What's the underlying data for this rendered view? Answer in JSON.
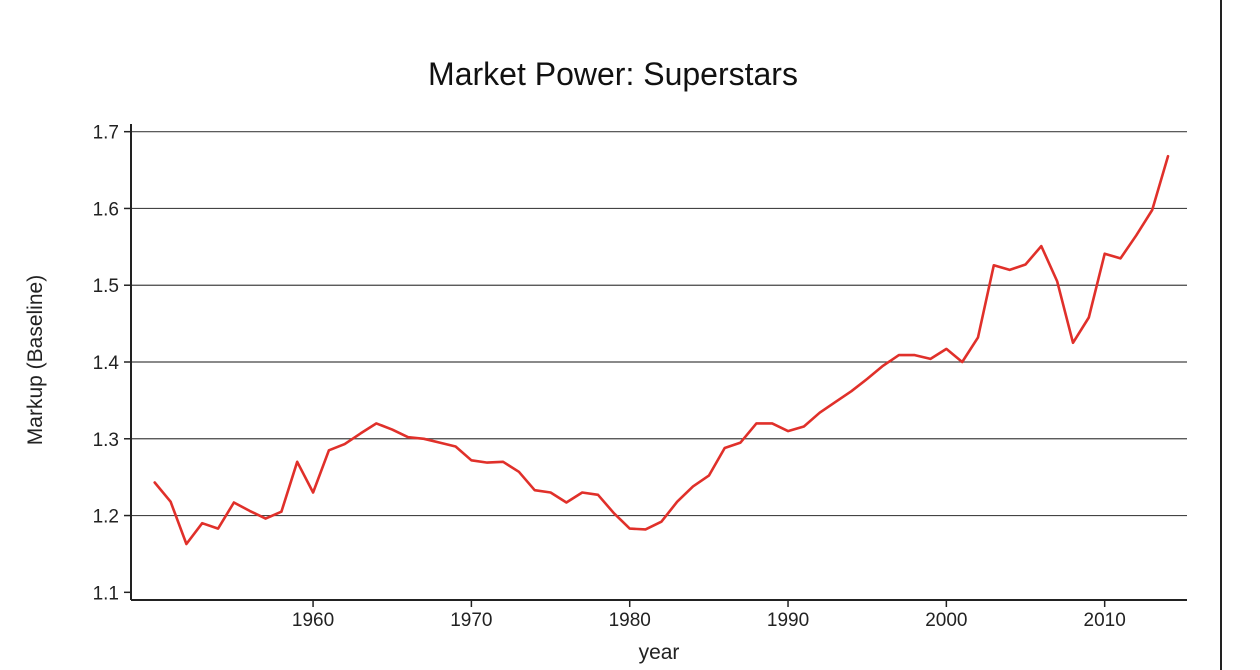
{
  "chart_data": {
    "type": "line",
    "title": "Market Power: Superstars",
    "xlabel": "year",
    "ylabel": "Markup (Baseline)",
    "xlim": [
      1948.5,
      2015.2
    ],
    "ylim": [
      1.09,
      1.71
    ],
    "xticks": [
      1960,
      1970,
      1980,
      1990,
      2000,
      2010
    ],
    "yticks": [
      1.1,
      1.2,
      1.3,
      1.4,
      1.5,
      1.6,
      1.7
    ],
    "grid": true,
    "series": [
      {
        "color": "#e0302a",
        "x": [
          1950,
          1951,
          1952,
          1953,
          1954,
          1955,
          1956,
          1957,
          1958,
          1959,
          1960,
          1961,
          1962,
          1963,
          1964,
          1965,
          1966,
          1967,
          1968,
          1969,
          1970,
          1971,
          1972,
          1973,
          1974,
          1975,
          1976,
          1977,
          1978,
          1979,
          1980,
          1981,
          1982,
          1983,
          1984,
          1985,
          1986,
          1987,
          1988,
          1989,
          1990,
          1991,
          1992,
          1993,
          1994,
          1995,
          1996,
          1997,
          1998,
          1999,
          2000,
          2001,
          2002,
          2003,
          2004,
          2005,
          2006,
          2007,
          2008,
          2009,
          2010,
          2011,
          2012,
          2013,
          2014
        ],
        "values": [
          1.243,
          1.218,
          1.163,
          1.19,
          1.183,
          1.217,
          1.206,
          1.196,
          1.205,
          1.27,
          1.23,
          1.285,
          1.293,
          1.307,
          1.32,
          1.312,
          1.302,
          1.3,
          1.295,
          1.29,
          1.272,
          1.269,
          1.27,
          1.257,
          1.233,
          1.23,
          1.217,
          1.23,
          1.227,
          1.203,
          1.183,
          1.182,
          1.192,
          1.218,
          1.238,
          1.252,
          1.288,
          1.295,
          1.32,
          1.32,
          1.31,
          1.316,
          1.334,
          1.348,
          1.362,
          1.378,
          1.395,
          1.409,
          1.409,
          1.404,
          1.417,
          1.4,
          1.432,
          1.526,
          1.52,
          1.527,
          1.551,
          1.505,
          1.425,
          1.458,
          1.541,
          1.535,
          1.565,
          1.598,
          1.668
        ]
      }
    ]
  }
}
